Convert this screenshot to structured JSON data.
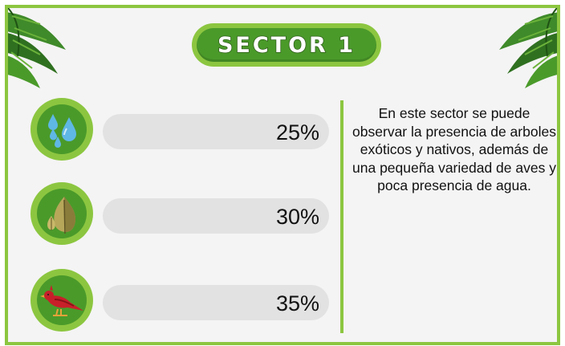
{
  "title": "SECTOR 1",
  "indicators": [
    {
      "icon": "water-drops-icon",
      "value": "25%"
    },
    {
      "icon": "leaves-icon",
      "value": "30%"
    },
    {
      "icon": "red-bird-icon",
      "value": "35%"
    }
  ],
  "description": "En este sector se puede observar la presencia de arboles exóticos y nativos, además de una pequeña variedad de aves y poca presencia de agua.",
  "colors": {
    "frame_green": "#8cc640",
    "dark_green": "#4a9a2a",
    "bar_gray": "#e2e2e2",
    "background": "#f4f4f4",
    "water_blue": "#5fb7e4",
    "bird_red": "#c8202a"
  }
}
